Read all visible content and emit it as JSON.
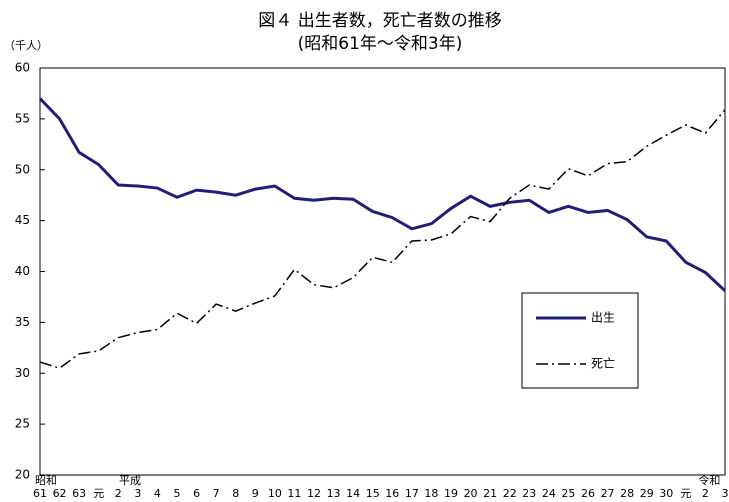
{
  "chart_data": {
    "type": "line",
    "title": "図４ 出生者数，死亡者数の推移",
    "subtitle": "(昭和61年～令和3年)",
    "y_label": "（千人）",
    "annotations": [
      "昭和",
      "平成",
      "令和"
    ],
    "categories": [
      "61",
      "62",
      "63",
      "元",
      "2",
      "3",
      "4",
      "5",
      "6",
      "7",
      "8",
      "9",
      "10",
      "11",
      "12",
      "13",
      "14",
      "15",
      "16",
      "17",
      "18",
      "19",
      "20",
      "21",
      "22",
      "23",
      "24",
      "25",
      "26",
      "27",
      "28",
      "29",
      "30",
      "元",
      "2",
      "3"
    ],
    "series": [
      {
        "name": "出生",
        "color": "#1f1f7a",
        "style": "solid",
        "values": [
          57.0,
          55.0,
          51.7,
          50.5,
          48.5,
          48.4,
          48.2,
          47.3,
          48.0,
          47.8,
          47.5,
          48.1,
          48.4,
          47.2,
          47.0,
          47.2,
          47.1,
          45.9,
          45.3,
          44.2,
          44.7,
          46.2,
          47.4,
          46.4,
          46.8,
          47.0,
          45.8,
          46.4,
          45.8,
          46.0,
          45.1,
          43.4,
          43.0,
          40.9,
          39.9,
          38.1
        ]
      },
      {
        "name": "死亡",
        "color": "#000000",
        "style": "dashdot",
        "values": [
          31.1,
          30.5,
          31.9,
          32.2,
          33.5,
          34.0,
          34.3,
          35.9,
          34.9,
          36.8,
          36.1,
          36.9,
          37.6,
          40.2,
          38.7,
          38.4,
          39.4,
          41.4,
          40.9,
          43.0,
          43.1,
          43.7,
          45.4,
          44.9,
          47.2,
          48.5,
          48.1,
          50.1,
          49.4,
          50.6,
          50.8,
          52.3,
          53.4,
          54.4,
          53.6,
          55.9
        ]
      }
    ],
    "ylim": [
      20,
      60
    ],
    "yticks": [
      20,
      25,
      30,
      35,
      40,
      45,
      50,
      55,
      60
    ],
    "grid": false
  }
}
